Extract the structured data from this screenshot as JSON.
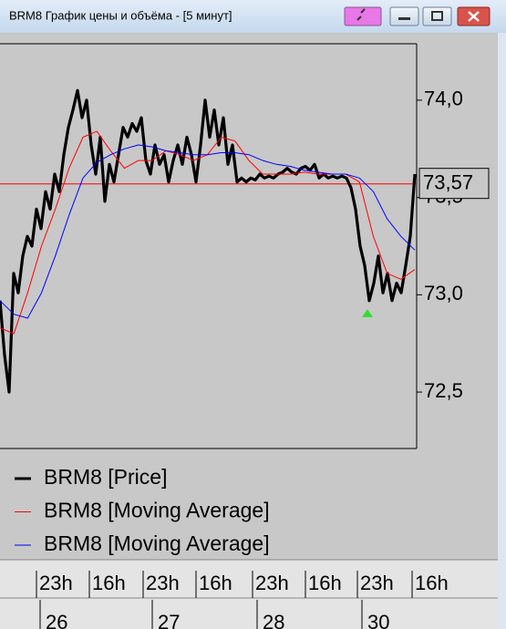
{
  "window": {
    "title": "BRM8 График цены и объёма - [5 минут]"
  },
  "chart_data": {
    "type": "line",
    "ylim": [
      72.21,
      74.29
    ],
    "yticks": [
      {
        "value": 72.5,
        "label": "72,5"
      },
      {
        "value": 73,
        "label": "73,0"
      },
      {
        "value": 73.5,
        "label": "73,5"
      },
      {
        "value": 74,
        "label": "74,0"
      }
    ],
    "reference_line": {
      "value": 73.57,
      "label": "73,57",
      "color": "#ff0000"
    },
    "series": [
      {
        "name": "BRM8 [Price]",
        "color": "#000000",
        "values": [
          72.97,
          72.69,
          72.5,
          73.11,
          73.01,
          73.2,
          73.3,
          73.25,
          73.44,
          73.34,
          73.53,
          73.44,
          73.62,
          73.53,
          73.72,
          73.86,
          73.95,
          74.05,
          73.91,
          74.0,
          73.77,
          73.62,
          73.81,
          73.48,
          73.67,
          73.58,
          73.72,
          73.86,
          73.81,
          73.88,
          73.84,
          73.91,
          73.69,
          73.62,
          73.77,
          73.67,
          73.72,
          73.58,
          73.69,
          73.77,
          73.67,
          73.81,
          73.72,
          73.58,
          73.77,
          74.0,
          73.81,
          73.95,
          73.77,
          73.91,
          73.67,
          73.77,
          73.58,
          73.6,
          73.58,
          73.6,
          73.59,
          73.62,
          73.6,
          73.61,
          73.6,
          73.62,
          73.63,
          73.65,
          73.63,
          73.62,
          73.65,
          73.66,
          73.64,
          73.67,
          73.6,
          73.62,
          73.6,
          73.61,
          73.6,
          73.61,
          73.6,
          73.55,
          73.44,
          73.25,
          73.15,
          72.97,
          73.06,
          73.2,
          73.01,
          73.11,
          72.97,
          73.06,
          73.01,
          73.15,
          73.3,
          73.62
        ]
      },
      {
        "name": "BRM8 [Moving Average]",
        "color": "#ff0000",
        "values": [
          72.83,
          72.8,
          73.01,
          73.25,
          73.44,
          73.65,
          73.81,
          73.84,
          73.74,
          73.65,
          73.69,
          73.69,
          73.74,
          73.72,
          73.69,
          73.72,
          73.81,
          73.79,
          73.69,
          73.62,
          73.62,
          73.62,
          73.63,
          73.62,
          73.62,
          73.62,
          73.58,
          73.3,
          73.11,
          73.08,
          73.13
        ]
      },
      {
        "name": "BRM8 [Moving Average]",
        "color": "#0000ff",
        "values": [
          72.97,
          72.9,
          72.88,
          73.01,
          73.2,
          73.41,
          73.6,
          73.68,
          73.72,
          73.75,
          73.77,
          73.76,
          73.74,
          73.73,
          73.72,
          73.72,
          73.73,
          73.73,
          73.72,
          73.69,
          73.67,
          73.66,
          73.64,
          73.63,
          73.62,
          73.62,
          73.6,
          73.53,
          73.39,
          73.3,
          73.23
        ]
      }
    ],
    "time_labels": [
      "23h",
      "16h",
      "23h",
      "16h",
      "23h",
      "16h",
      "23h",
      "16h"
    ],
    "date_labels": [
      "26",
      "27",
      "28",
      "30"
    ]
  }
}
